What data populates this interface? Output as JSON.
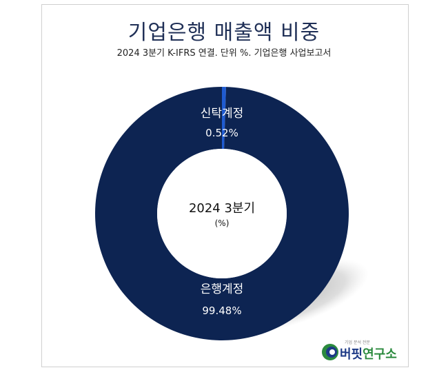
{
  "chart_data": {
    "type": "pie",
    "title": "기업은행 매출액 비중",
    "subtitle": "2024 3분기 K-IFRS 연결. 단위 %. 기업은행 사업보고서",
    "center_label": "2024 3분기",
    "center_sublabel": "(%)",
    "slices": [
      {
        "name": "신탁계정",
        "value": 0.52,
        "value_label": "0.52%",
        "color": "#1f5bd1"
      },
      {
        "name": "은행계정",
        "value": 99.48,
        "value_label": "99.48%",
        "color": "#0d2452"
      }
    ]
  },
  "logo": {
    "tagline": "기업 분석 전문",
    "name_part1": "버핏",
    "name_part2": "연구소"
  }
}
